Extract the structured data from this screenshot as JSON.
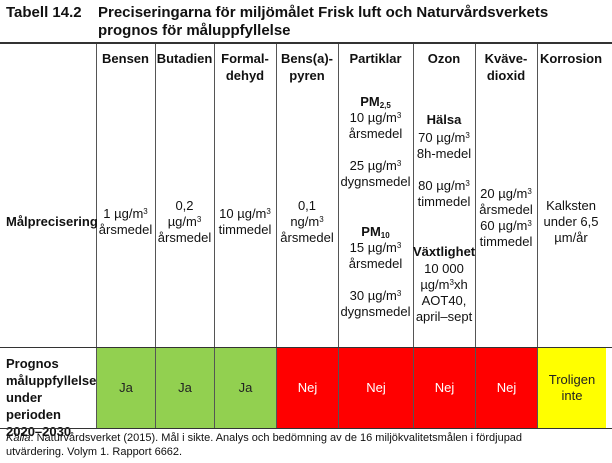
{
  "table": {
    "number": "Tabell 14.2",
    "title": "Preciseringarna för miljömålet Frisk luft och Naturvårdsverkets prognos för måluppfyllelse",
    "headers": [
      "Bensen",
      "Butadien",
      "Formal-\ndehyd",
      "Bens(a)-\npyren",
      "Partiklar",
      "Ozon",
      "Kväve-\ndioxid",
      "Korrosion"
    ],
    "row1_label": "Målprecisering",
    "cells": {
      "bensen": [
        "1 µg/m³",
        "årsmedel"
      ],
      "butadien": [
        "0,2",
        "µg/m³",
        "årsmedel"
      ],
      "formaldehyd": [
        "10 µg/m³",
        "timmedel"
      ],
      "bensapyren": [
        "0,1",
        "ng/m³",
        "årsmedel"
      ],
      "partiklar": {
        "pm25_label": "PM2,5",
        "pm25_vals": [
          "10 µg/m³",
          "årsmedel",
          "",
          "25 µg/m³",
          "dygnsmedel"
        ],
        "pm10_label": "PM10",
        "pm10_vals": [
          "15 µg/m³",
          "årsmedel",
          "",
          "30 µg/m³",
          "dygnsmedel"
        ]
      },
      "ozon": {
        "halsa_label": "Hälsa",
        "halsa_vals": [
          "70 µg/m³",
          "8h-medel",
          "",
          "80 µg/m³",
          "timmedel"
        ],
        "vaxt_label": "Växtlighet",
        "vaxt_vals": [
          "10 000",
          "µg/m³xh",
          "AOT40,",
          "april–sept"
        ]
      },
      "kvavedioxid": [
        "20 µg/m³",
        "årsmedel",
        "60 µg/m³",
        "timmedel"
      ],
      "korrosion": [
        "Kalksten",
        "under 6,5",
        "µm/år"
      ]
    },
    "row2_label": "Prognos\nmåluppfyllelse\nunder perioden\n2020–2030",
    "prognos": [
      {
        "text": "Ja",
        "color": "#92d050",
        "textcolor": "#222222"
      },
      {
        "text": "Ja",
        "color": "#92d050",
        "textcolor": "#222222"
      },
      {
        "text": "Ja",
        "color": "#92d050",
        "textcolor": "#222222"
      },
      {
        "text": "Nej",
        "color": "#ff0000",
        "textcolor": "#ffffff"
      },
      {
        "text": "Nej",
        "color": "#ff0000",
        "textcolor": "#ffffff"
      },
      {
        "text": "Nej",
        "color": "#ff0000",
        "textcolor": "#ffffff"
      },
      {
        "text": "Nej",
        "color": "#ff0000",
        "textcolor": "#ffffff"
      },
      {
        "text": "Troligen\ninte",
        "color": "#ffff00",
        "textcolor": "#222222"
      }
    ],
    "source_label": "Källa",
    "source_text": ": Naturvårdsverket (2015). Mål i sikte. Analys och bedömning av de 16 miljökvalitetsmålen i fördjupad utvärdering. Volym 1. Rapport 6662."
  }
}
